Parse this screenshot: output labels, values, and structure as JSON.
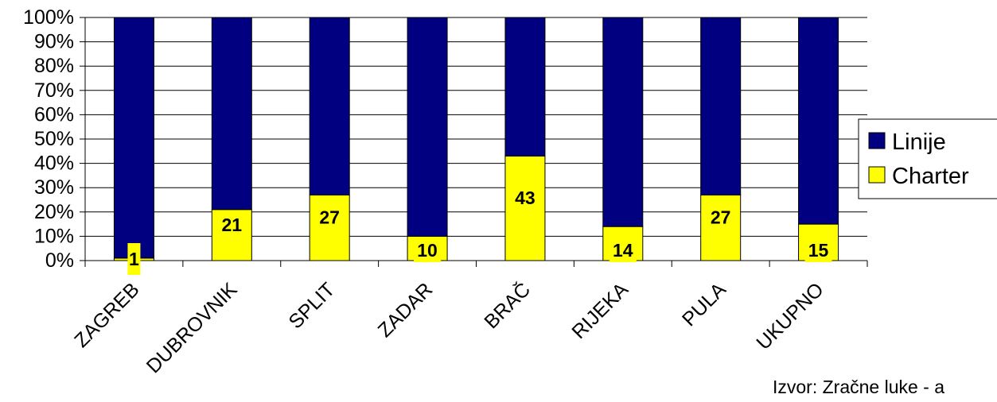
{
  "chart_data": {
    "type": "bar",
    "stacked": true,
    "percent": true,
    "categories": [
      "ZAGREB",
      "DUBROVNIK",
      "SPLIT",
      "ZADAR",
      "BRAČ",
      "RIJEKA",
      "PULA",
      "UKUPNO"
    ],
    "series": [
      {
        "name": "Linije",
        "color": "#000080",
        "values": [
          99,
          79,
          73,
          90,
          57,
          86,
          73,
          85
        ]
      },
      {
        "name": "Charter",
        "color": "#ffff00",
        "values": [
          1,
          21,
          27,
          10,
          43,
          14,
          27,
          15
        ]
      }
    ],
    "data_labels": [
      "1",
      "21",
      "27",
      "10",
      "43",
      "14",
      "27",
      "15"
    ],
    "y_ticks": [
      "0%",
      "10%",
      "20%",
      "30%",
      "40%",
      "50%",
      "60%",
      "70%",
      "80%",
      "90%",
      "100%"
    ],
    "ylim": [
      0,
      100
    ],
    "grid": true,
    "legend_position": "right"
  },
  "source_text": "Izvor: Zračne luke - a"
}
